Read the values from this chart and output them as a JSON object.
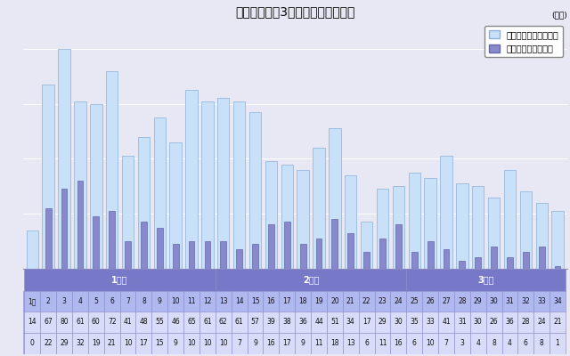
{
  "title": "震災発生から3年間の倒産件数推移",
  "legend_labels": [
    "東日本大震災関連倒産",
    "阪神大震災関連倒産"
  ],
  "x_labels": [
    "1月",
    "2",
    "3",
    "4",
    "5",
    "6",
    "7",
    "8",
    "9",
    "10",
    "11",
    "12",
    "13",
    "14",
    "15",
    "16",
    "17",
    "18",
    "19",
    "20",
    "21",
    "22",
    "23",
    "24",
    "25",
    "26",
    "27",
    "28",
    "29",
    "30",
    "31",
    "32",
    "33",
    "34"
  ],
  "bar1_values": [
    14,
    67,
    80,
    61,
    60,
    72,
    41,
    48,
    55,
    46,
    65,
    61,
    62,
    61,
    57,
    39,
    38,
    36,
    44,
    51,
    34,
    17,
    29,
    30,
    35,
    33,
    41,
    31,
    30,
    26,
    36,
    28,
    24,
    21
  ],
  "bar2_values": [
    0,
    22,
    29,
    32,
    19,
    21,
    10,
    17,
    15,
    9,
    10,
    10,
    10,
    7,
    9,
    16,
    17,
    9,
    11,
    18,
    13,
    6,
    11,
    16,
    6,
    10,
    7,
    3,
    4,
    8,
    4,
    6,
    8,
    1
  ],
  "bar1_color": "#c8e0f8",
  "bar2_color": "#8888cc",
  "bar1_edge": "#8ab0d8",
  "bar2_edge": "#6666aa",
  "ylim": [
    0,
    90
  ],
  "ylabel_unit": "(カ月)",
  "year_labels": [
    "1年目",
    "2年目",
    "3年目"
  ],
  "year_ranges": [
    [
      0,
      11
    ],
    [
      12,
      23
    ],
    [
      24,
      33
    ]
  ],
  "table_header_bg": "#7878c8",
  "table_month_bg": "#b0b8f0",
  "table_data_bg": "#d8dcf8",
  "table_grid_color": "#8888cc",
  "bg_color": "#e8e8f4",
  "chart_bg": "#e8e8f4",
  "spine_color": "#999999",
  "grid_color": "#ffffff"
}
